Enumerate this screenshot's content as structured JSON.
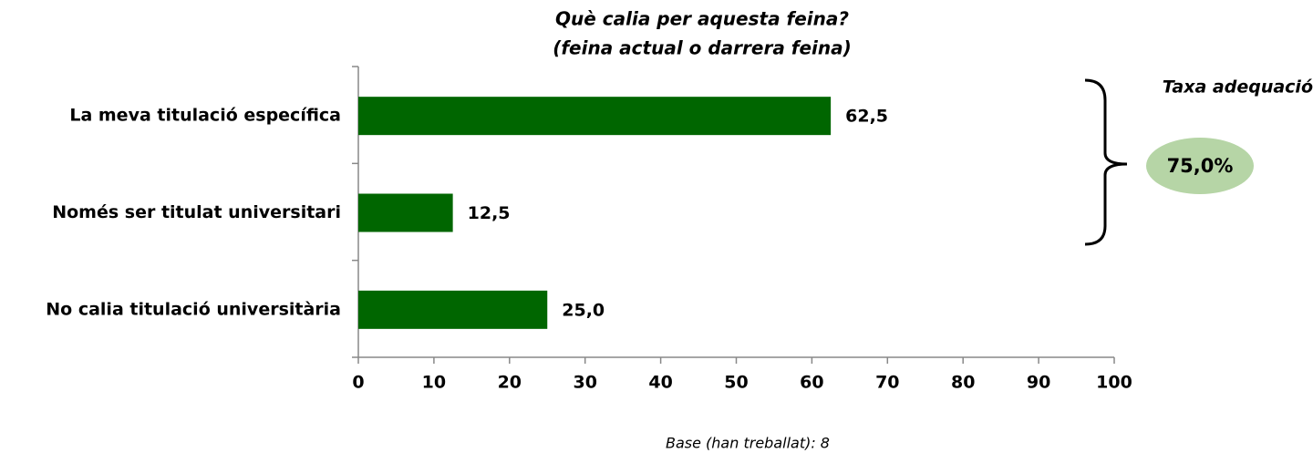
{
  "chart_data": {
    "type": "bar",
    "orientation": "horizontal",
    "title": "Què calia per aquesta feina?",
    "subtitle": "(feina actual o darrera feina)",
    "categories": [
      "La meva titulació específica",
      "Només ser titulat universitari",
      "No calia titulació universitària"
    ],
    "values": [
      62.5,
      12.5,
      25.0
    ],
    "value_labels": [
      "62,5",
      "12,5",
      "25,0"
    ],
    "color": "#006600",
    "xlim": [
      0,
      100
    ],
    "xticks": [
      0,
      10,
      20,
      30,
      40,
      50,
      60,
      70,
      80,
      90,
      100
    ],
    "grid": false,
    "annotation": {
      "label": "Taxa adequació",
      "value": "75,0%"
    },
    "footnote": "Base (han treballat): 8"
  }
}
